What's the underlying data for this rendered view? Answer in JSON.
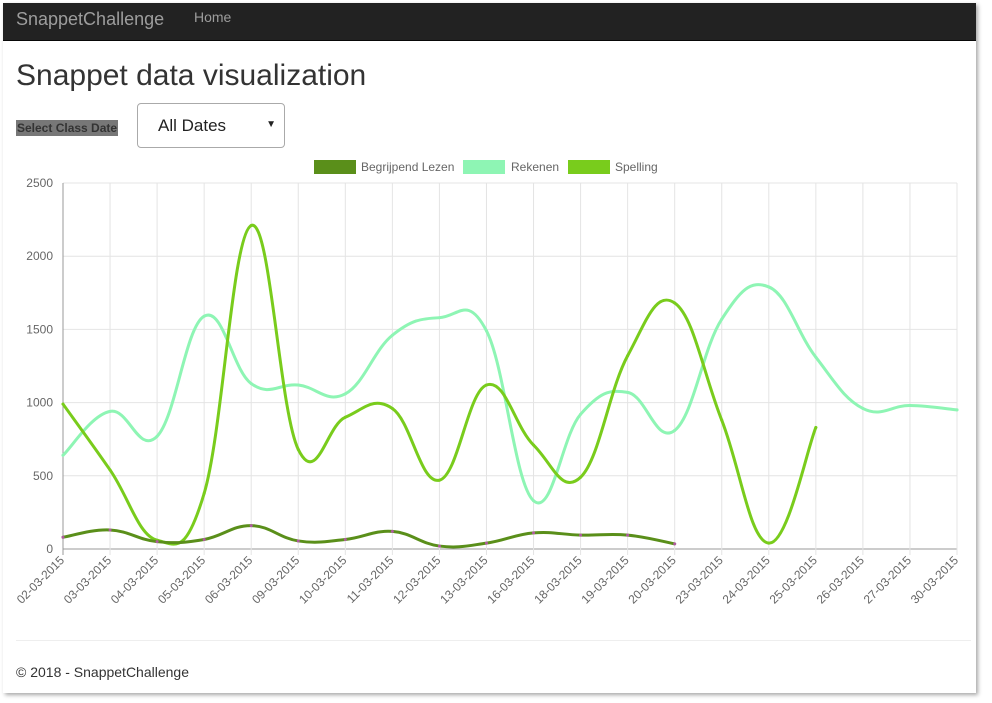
{
  "navbar": {
    "brand": "SnappetChallenge",
    "home_label": "Home"
  },
  "page": {
    "title": "Snappet data visualization"
  },
  "filter": {
    "label": "Select Class Date",
    "selected": "All Dates"
  },
  "footer": {
    "text": "© 2018 - SnappetChallenge"
  },
  "chart_data": {
    "type": "line",
    "title": "",
    "xlabel": "",
    "ylabel": "",
    "ylim": [
      0,
      2500
    ],
    "yticks": [
      0,
      500,
      1000,
      1500,
      2000,
      2500
    ],
    "grid": true,
    "legend_position": "top-center",
    "categories": [
      "02-03-2015",
      "03-03-2015",
      "04-03-2015",
      "05-03-2015",
      "06-03-2015",
      "09-03-2015",
      "10-03-2015",
      "11-03-2015",
      "12-03-2015",
      "13-03-2015",
      "16-03-2015",
      "18-03-2015",
      "19-03-2015",
      "20-03-2015",
      "23-03-2015",
      "24-03-2015",
      "25-03-2015",
      "26-03-2015",
      "27-03-2015",
      "30-03-2015"
    ],
    "series": [
      {
        "name": "Begrijpend Lezen",
        "color": "#5a8f1a",
        "values": [
          80,
          130,
          50,
          65,
          160,
          55,
          65,
          120,
          20,
          40,
          110,
          95,
          95,
          35,
          null,
          null,
          null,
          null,
          null,
          null
        ]
      },
      {
        "name": "Rekenen",
        "color": "#8ef5b4",
        "values": [
          640,
          940,
          770,
          1590,
          1130,
          1120,
          1060,
          1460,
          1580,
          1490,
          330,
          920,
          1070,
          810,
          1570,
          1790,
          1310,
          960,
          980,
          950
        ]
      },
      {
        "name": "Spelling",
        "color": "#79cc1c",
        "values": [
          990,
          540,
          60,
          380,
          2210,
          680,
          900,
          960,
          470,
          1120,
          710,
          490,
          1320,
          1680,
          880,
          40,
          830,
          null,
          null,
          null
        ]
      }
    ]
  }
}
